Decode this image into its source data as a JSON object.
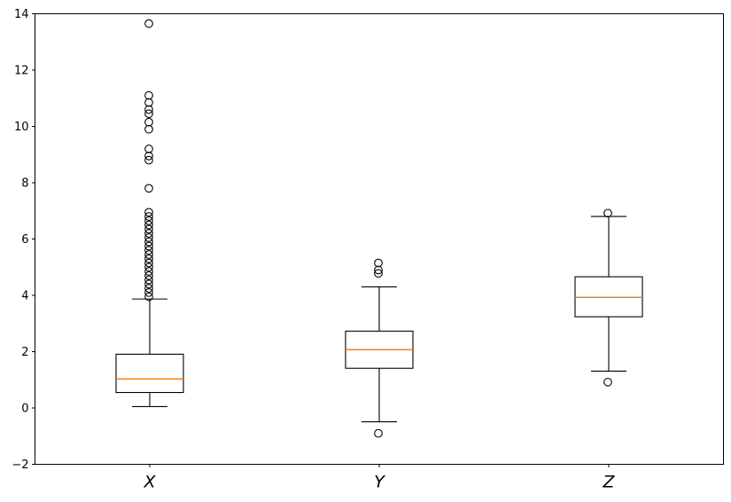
{
  "figure": {
    "background": "#ffffff",
    "title": ""
  },
  "chart_data": {
    "type": "boxplot",
    "categories": [
      "X",
      "Y",
      "Z"
    ],
    "xlabel": "",
    "ylabel": "",
    "ylim": [
      -2,
      14
    ],
    "grid": false,
    "legend": false,
    "y_axis": {
      "ticks": [
        {
          "value": 14,
          "label": "14"
        },
        {
          "value": 12,
          "label": "12"
        },
        {
          "value": 10,
          "label": "10"
        },
        {
          "value": 8,
          "label": "8"
        },
        {
          "value": 6,
          "label": "6"
        },
        {
          "value": 4,
          "label": "4"
        },
        {
          "value": 2,
          "label": "2"
        },
        {
          "value": 0,
          "label": "0"
        },
        {
          "value": -2,
          "label": "−2"
        }
      ]
    },
    "series": [
      {
        "label": "X",
        "whisker_low": 0.05,
        "q1": 0.55,
        "median": 1.03,
        "q3": 1.91,
        "whisker_high": 3.87,
        "outliers": [
          3.95,
          4.1,
          4.25,
          4.4,
          4.55,
          4.7,
          4.85,
          5.0,
          5.15,
          5.3,
          5.45,
          5.6,
          5.75,
          5.9,
          6.05,
          6.2,
          6.35,
          6.5,
          6.65,
          6.8,
          6.95,
          7.8,
          8.8,
          8.95,
          9.2,
          9.9,
          10.15,
          10.45,
          10.6,
          10.85,
          11.1,
          13.65
        ]
      },
      {
        "label": "Y",
        "whisker_low": -0.49,
        "q1": 1.41,
        "median": 2.07,
        "q3": 2.73,
        "whisker_high": 4.3,
        "outliers": [
          -0.9,
          4.78,
          4.9,
          5.15
        ]
      },
      {
        "label": "Z",
        "whisker_low": 1.31,
        "q1": 3.24,
        "median": 3.93,
        "q3": 4.66,
        "whisker_high": 6.8,
        "outliers": [
          0.92,
          6.92
        ]
      }
    ],
    "style": {
      "median_color": "#ff7f0e",
      "box_edge_color": "#000000",
      "whisker_color": "#000000",
      "flier_edge_color": "#000000",
      "spine_color": "#000000"
    }
  }
}
